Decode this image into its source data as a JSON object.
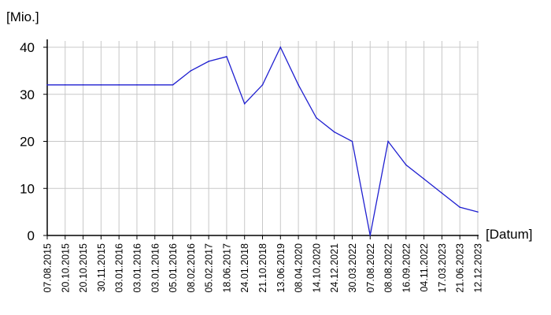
{
  "chart_data": {
    "type": "line",
    "title": "",
    "xlabel": "[Datum]",
    "ylabel": "[Mio.]",
    "ylim": [
      0,
      40
    ],
    "yticks": [
      0,
      10,
      20,
      30,
      40
    ],
    "grid": true,
    "line_color": "#1f1fd0",
    "categories": [
      "07.08.2015",
      "20.10.2015",
      "20.10.2015",
      "30.11.2015",
      "03.01.2016",
      "03.01.2016",
      "03.01.2016",
      "05.01.2016",
      "08.02.2016",
      "05.02.2017",
      "18.06.2017",
      "24.01.2018",
      "21.10.2018",
      "13.06.2019",
      "08.04.2020",
      "14.10.2020",
      "24.12.2021",
      "30.03.2022",
      "07.08.2022",
      "08.08.2022",
      "16.09.2022",
      "04.11.2022",
      "17.03.2023",
      "21.06.2023",
      "12.12.2023"
    ],
    "series": [
      {
        "values": [
          32,
          32,
          32,
          32,
          32,
          32,
          32,
          32,
          35,
          37,
          38,
          28,
          32,
          40,
          32,
          25,
          22,
          20,
          0,
          20,
          15,
          12,
          9,
          6,
          5
        ]
      }
    ]
  }
}
